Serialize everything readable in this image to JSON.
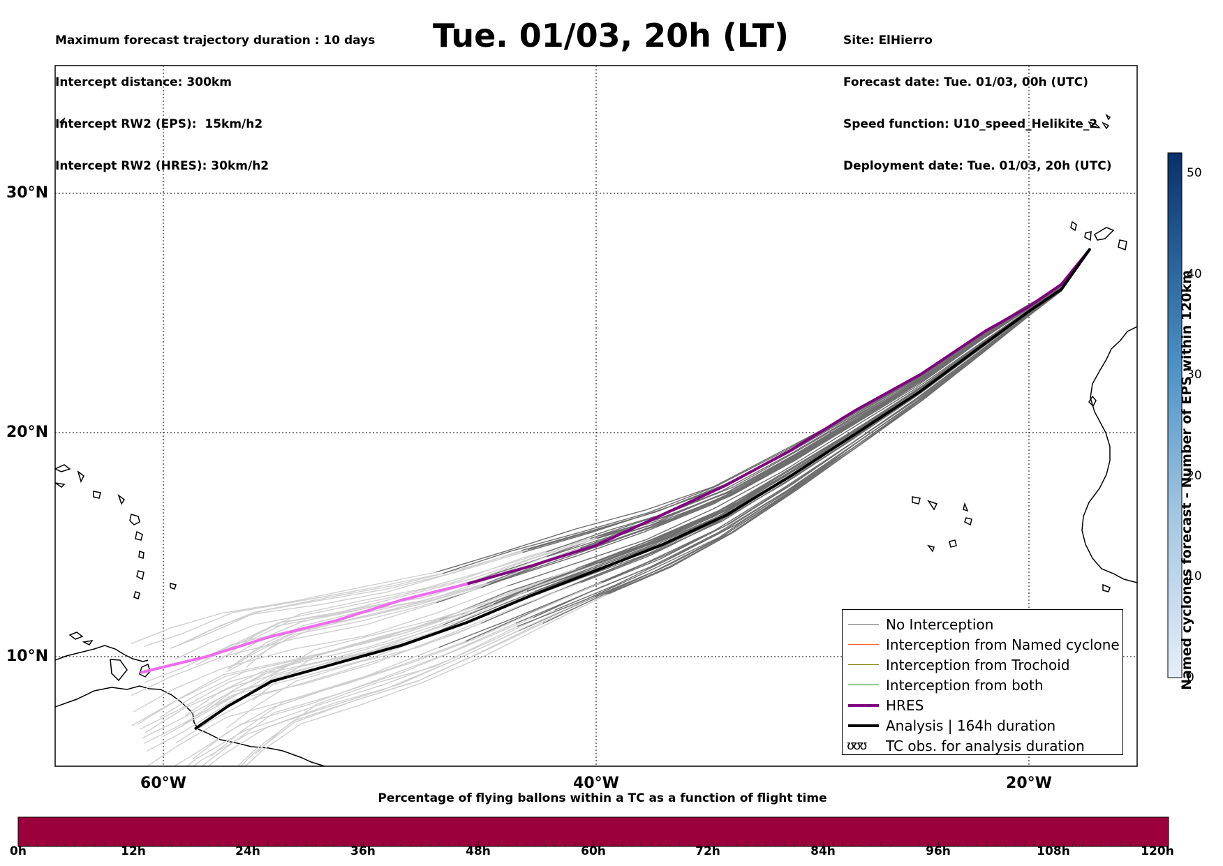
{
  "header": {
    "left_lines": [
      "Maximum forecast trajectory duration : 10 days",
      "Intercept distance: 300km",
      "Intercept RW2 (EPS):  15km/h2",
      "Intercept RW2 (HRES): 30km/h2"
    ],
    "title": "Tue. 01/03, 20h (LT)",
    "right_lines": [
      "Site: ElHierro",
      "Forecast date: Tue. 01/03, 00h (UTC)",
      "Speed function: U10_speed_Helikite_2",
      "Deployment date: Tue. 01/03, 20h (UTC)"
    ]
  },
  "map": {
    "lat_labels": [
      "30°N",
      "20°N",
      "10°N"
    ],
    "lon_labels": [
      "60°W",
      "40°W",
      "20°W"
    ],
    "lat_range": [
      5.4,
      34.7
    ],
    "lon_range": [
      -65.0,
      -15.0
    ],
    "colors": {
      "no_interception": "#6e6e6e",
      "no_interception_early": "#cfcfcf",
      "named_cyclone": "#ff5a1f",
      "trochoid": "#808000",
      "both": "#008000",
      "hres": "#800080",
      "hres_early": "#ee6cee",
      "analysis": "#000000",
      "coast": "#000000"
    },
    "trajectories": {
      "hres": [
        [
          -17.2,
          27.6
        ],
        [
          -18.5,
          26.2
        ],
        [
          -20,
          25.3
        ],
        [
          -22,
          24.3
        ],
        [
          -25,
          22.5
        ],
        [
          -28,
          21
        ],
        [
          -31,
          19.3
        ],
        [
          -34,
          17.8
        ],
        [
          -37,
          16.5
        ],
        [
          -40,
          15.2
        ],
        [
          -43,
          14.3
        ],
        [
          -46,
          13.5
        ],
        [
          -49,
          12.8
        ],
        [
          -52,
          11.9
        ],
        [
          -55,
          11.2
        ],
        [
          -58,
          10.3
        ],
        [
          -61,
          9.6
        ]
      ],
      "analysis": [
        [
          -17.2,
          27.6
        ],
        [
          -18.5,
          26.0
        ],
        [
          -20,
          25.1
        ],
        [
          -22,
          23.8
        ],
        [
          -25,
          21.8
        ],
        [
          -28,
          20
        ],
        [
          -31,
          18.2
        ],
        [
          -34,
          16.5
        ],
        [
          -37,
          15.2
        ],
        [
          -40,
          14.1
        ],
        [
          -43,
          13
        ],
        [
          -46,
          11.8
        ],
        [
          -49,
          10.8
        ],
        [
          -52,
          10.0
        ],
        [
          -55,
          9.2
        ],
        [
          -57,
          8.1
        ],
        [
          -58.5,
          7.1
        ]
      ]
    }
  },
  "legend": {
    "items": [
      {
        "label": "No Interception",
        "kind": "line",
        "color": "#6e6e6e",
        "width": 1.5
      },
      {
        "label": "Interception from Named cyclone",
        "kind": "line",
        "color": "#ff5a1f",
        "width": 1.5
      },
      {
        "label": "Interception from Trochoid",
        "kind": "line",
        "color": "#808000",
        "width": 1.5
      },
      {
        "label": "Interception from both",
        "kind": "line",
        "color": "#008000",
        "width": 1.5
      },
      {
        "label": "HRES",
        "kind": "line",
        "color": "#800080",
        "width": 4
      },
      {
        "label": "Analysis | 164h duration",
        "kind": "line",
        "color": "#000000",
        "width": 4
      },
      {
        "label": "TC obs. for analysis duration",
        "kind": "symbol",
        "symbol": "ʊʊʊ"
      }
    ]
  },
  "colorbar_right": {
    "title": "Named cyclones forecast - Number of EPS within 120km",
    "ticks": [
      "50",
      "40",
      "30",
      "20",
      "10",
      "0"
    ],
    "tick_values": [
      50,
      40,
      30,
      20,
      10,
      0
    ],
    "range": [
      0,
      52
    ],
    "color_low": "#e6eef8",
    "color_high": "#08306b"
  },
  "colorbar_bottom": {
    "title": "Percentage of flying ballons within a TC as a function of flight time",
    "ticks": [
      "0h",
      "12h",
      "24h",
      "36h",
      "48h",
      "60h",
      "72h",
      "84h",
      "96h",
      "108h",
      "120h"
    ],
    "fill_color": "#9b003c"
  }
}
